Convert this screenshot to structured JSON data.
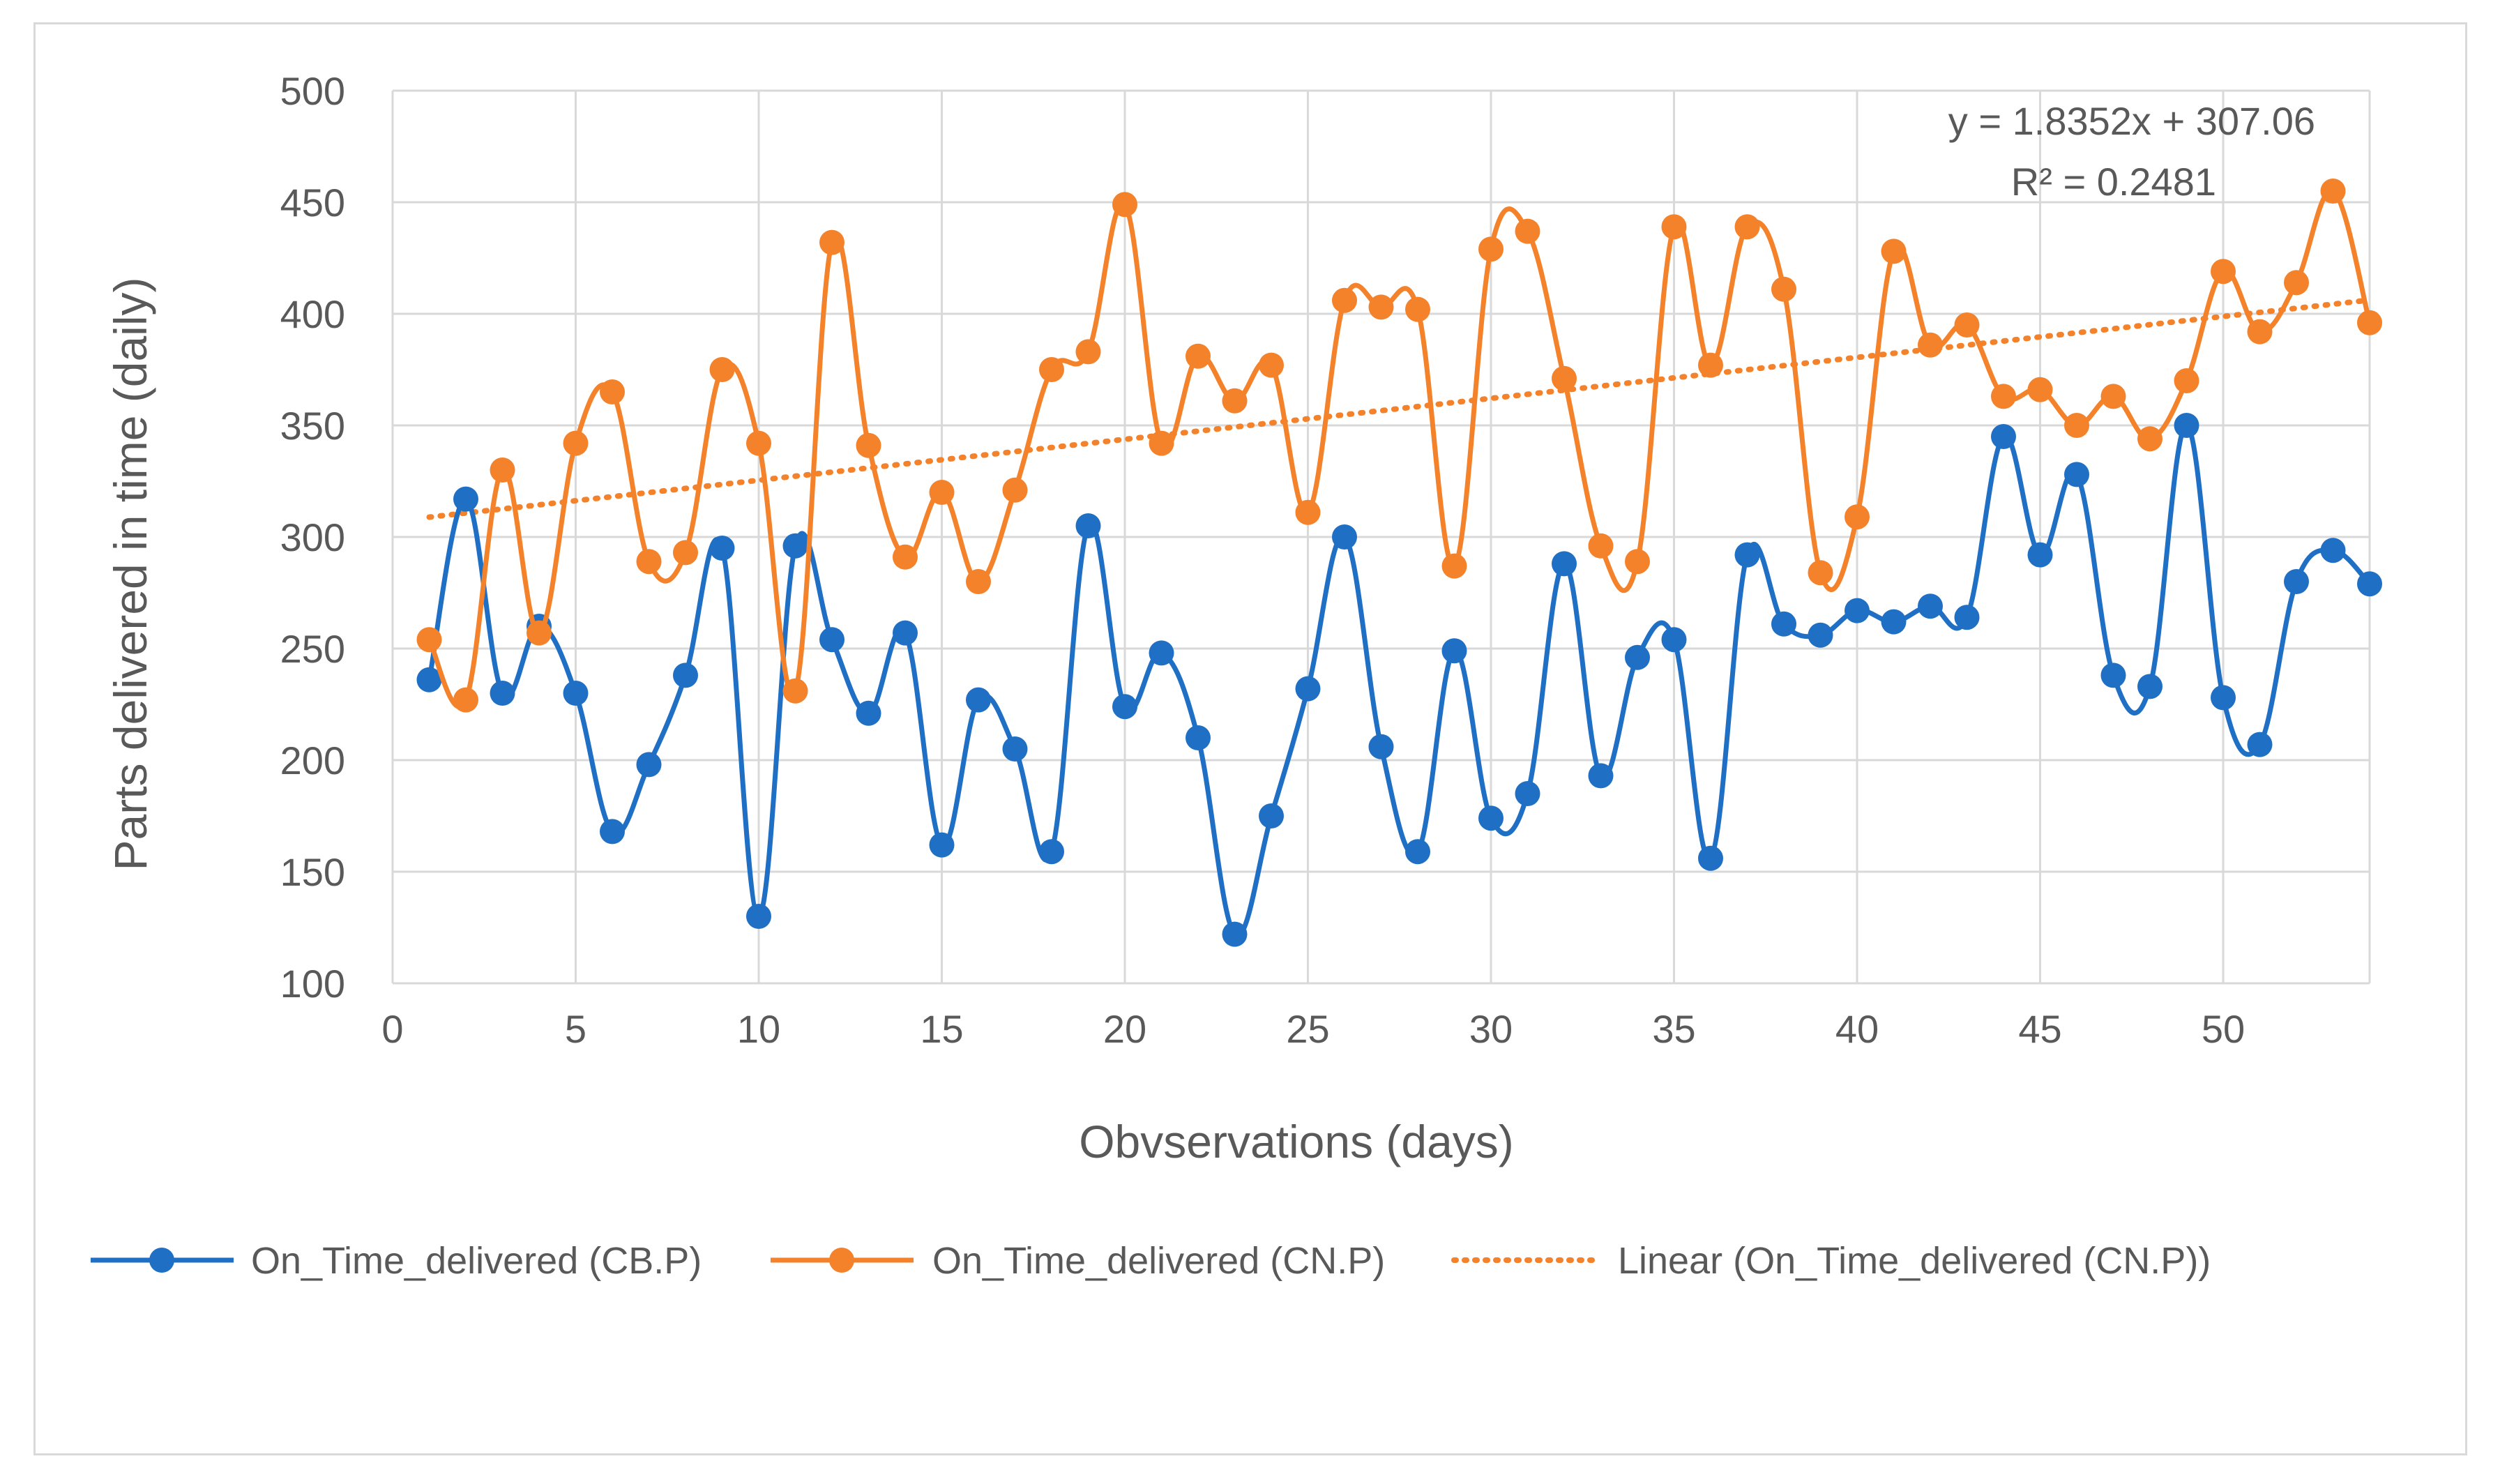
{
  "chart_data": {
    "type": "line",
    "title": "",
    "xlabel": "Obvservations (days)",
    "ylabel": "Parts delivered in time (daily)",
    "xlim": [
      0,
      54
    ],
    "ylim": [
      100,
      500
    ],
    "xticks": [
      0,
      5,
      10,
      15,
      20,
      25,
      30,
      35,
      40,
      45,
      50
    ],
    "yticks": [
      100,
      150,
      200,
      250,
      300,
      350,
      400,
      450,
      500
    ],
    "grid": true,
    "legend_position": "bottom",
    "series": [
      {
        "name": "On_Time_delivered (CB.P)",
        "color": "#1f6fc5",
        "x": [
          1,
          2,
          3,
          4,
          5,
          6,
          7,
          8,
          9,
          10,
          11,
          12,
          13,
          14,
          15,
          16,
          17,
          18,
          19,
          20,
          21,
          22,
          23,
          24,
          25,
          26,
          27,
          28,
          29,
          30,
          31,
          32,
          33,
          34,
          35,
          36,
          37,
          38,
          39,
          40,
          41,
          42,
          43,
          44,
          45,
          46,
          47,
          48,
          49,
          50,
          51,
          52,
          53,
          54
        ],
        "values": [
          236,
          317,
          230,
          260,
          230,
          168,
          198,
          238,
          295,
          130,
          296,
          254,
          221,
          257,
          162,
          227,
          205,
          159,
          305,
          224,
          248,
          210,
          122,
          175,
          232,
          300,
          206,
          159,
          249,
          174,
          185,
          288,
          193,
          246,
          254,
          156,
          292,
          261,
          256,
          267,
          262,
          269,
          264,
          345,
          292,
          328,
          238,
          233,
          350,
          228,
          207,
          280,
          294,
          279
        ]
      },
      {
        "name": "On_Time_delivered (CN.P)",
        "color": "#f4822a",
        "x": [
          1,
          2,
          3,
          4,
          5,
          6,
          7,
          8,
          9,
          10,
          11,
          12,
          13,
          14,
          15,
          16,
          17,
          18,
          19,
          20,
          21,
          22,
          23,
          24,
          25,
          26,
          27,
          28,
          29,
          30,
          31,
          32,
          33,
          34,
          35,
          36,
          37,
          38,
          39,
          40,
          41,
          42,
          43,
          44,
          45,
          46,
          47,
          48,
          49,
          50,
          51,
          52,
          53,
          54
        ],
        "values": [
          254,
          227,
          330,
          257,
          342,
          365,
          289,
          293,
          375,
          342,
          231,
          432,
          341,
          291,
          320,
          280,
          321,
          375,
          383,
          449,
          342,
          381,
          361,
          377,
          311,
          406,
          403,
          402,
          287,
          429,
          437,
          371,
          296,
          289,
          439,
          377,
          439,
          411,
          284,
          309,
          428,
          386,
          395,
          363,
          366,
          350,
          363,
          344,
          370,
          419,
          392,
          414,
          455,
          396
        ]
      }
    ],
    "trendline": {
      "name": "Linear (On_Time_delivered (CN.P))",
      "color": "#f4822a",
      "slope": 1.8352,
      "intercept": 307.06,
      "x_range": [
        1,
        54
      ],
      "equation": "y = 1.8352x + 307.06",
      "r_squared": "R² = 0.2481"
    }
  }
}
